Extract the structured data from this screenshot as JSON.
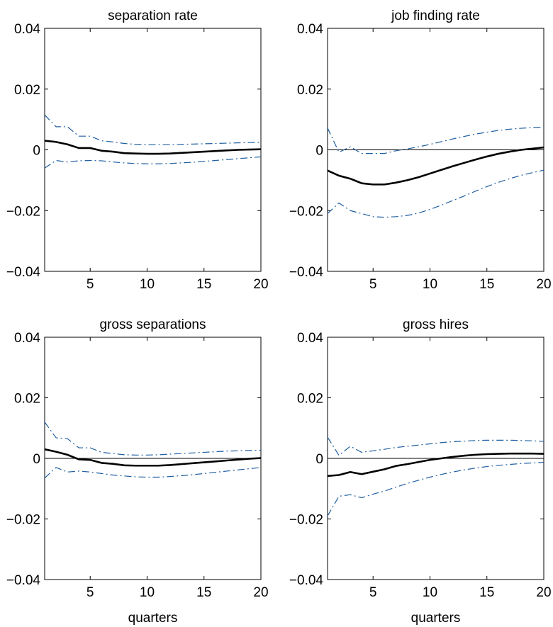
{
  "chart_data": [
    {
      "type": "line",
      "title": "separation rate",
      "xlabel": "",
      "ylabel": "",
      "xlim": [
        1,
        20
      ],
      "ylim": [
        -0.04,
        0.04
      ],
      "xticks": [
        5,
        10,
        15,
        20
      ],
      "xtick_labels": [
        "5",
        "10",
        "15",
        "20"
      ],
      "yticks": [
        -0.04,
        -0.02,
        0,
        0.02,
        0.04
      ],
      "ytick_labels": [
        "−0.04",
        "−0.02",
        "0",
        "0.02",
        "0.04"
      ],
      "x": [
        1,
        2,
        3,
        4,
        5,
        6,
        7,
        8,
        9,
        10,
        11,
        12,
        13,
        14,
        15,
        16,
        17,
        18,
        19,
        20
      ],
      "series": [
        {
          "role": "estimate",
          "color": "#000000",
          "values": [
            0.003,
            0.0026,
            0.0018,
            0.0006,
            0.0006,
            -0.0003,
            -0.0006,
            -0.0011,
            -0.0012,
            -0.0013,
            -0.0013,
            -0.0012,
            -0.001,
            -0.0008,
            -0.0006,
            -0.0004,
            -0.0002,
            0.0,
            0.0001,
            0.0002
          ]
        },
        {
          "role": "upper-band",
          "color": "#1f5fa0",
          "values": [
            0.0115,
            0.0076,
            0.0076,
            0.0045,
            0.0045,
            0.003,
            0.0026,
            0.0021,
            0.0018,
            0.0017,
            0.0017,
            0.0017,
            0.0018,
            0.0019,
            0.002,
            0.0021,
            0.0022,
            0.0023,
            0.0024,
            0.0025
          ]
        },
        {
          "role": "lower-band",
          "color": "#1f5fa0",
          "values": [
            -0.006,
            -0.0035,
            -0.004,
            -0.0036,
            -0.0035,
            -0.0036,
            -0.004,
            -0.0043,
            -0.0045,
            -0.0046,
            -0.0046,
            -0.0045,
            -0.0043,
            -0.0041,
            -0.0038,
            -0.0035,
            -0.0032,
            -0.0029,
            -0.0026,
            -0.0023
          ]
        }
      ],
      "zero_line": false
    },
    {
      "type": "line",
      "title": "job finding rate",
      "xlabel": "",
      "ylabel": "",
      "xlim": [
        1,
        20
      ],
      "ylim": [
        -0.04,
        0.04
      ],
      "xticks": [
        5,
        10,
        15,
        20
      ],
      "xtick_labels": [
        "5",
        "10",
        "15",
        "20"
      ],
      "yticks": [
        -0.04,
        -0.02,
        0,
        0.02,
        0.04
      ],
      "ytick_labels": [
        "−0.04",
        "−0.02",
        "0",
        "0.02",
        "0.04"
      ],
      "x": [
        1,
        2,
        3,
        4,
        5,
        6,
        7,
        8,
        9,
        10,
        11,
        12,
        13,
        14,
        15,
        16,
        17,
        18,
        19,
        20
      ],
      "series": [
        {
          "role": "estimate",
          "color": "#000000",
          "values": [
            -0.0068,
            -0.0085,
            -0.0095,
            -0.011,
            -0.0114,
            -0.0114,
            -0.0108,
            -0.01,
            -0.009,
            -0.0078,
            -0.0066,
            -0.0054,
            -0.0043,
            -0.0032,
            -0.0022,
            -0.0013,
            -0.0006,
            0.0,
            0.0004,
            0.0008
          ]
        },
        {
          "role": "upper-band",
          "color": "#1f5fa0",
          "values": [
            0.0072,
            -0.0008,
            0.001,
            -0.0012,
            -0.0012,
            -0.0012,
            -0.0003,
            0.0003,
            0.001,
            0.0018,
            0.0027,
            0.0036,
            0.0044,
            0.0052,
            0.0058,
            0.0064,
            0.0068,
            0.0071,
            0.0073,
            0.0075
          ]
        },
        {
          "role": "lower-band",
          "color": "#1f5fa0",
          "values": [
            -0.021,
            -0.0175,
            -0.02,
            -0.021,
            -0.022,
            -0.0222,
            -0.022,
            -0.0216,
            -0.0208,
            -0.0196,
            -0.0182,
            -0.0167,
            -0.0152,
            -0.0136,
            -0.0121,
            -0.0107,
            -0.0095,
            -0.0084,
            -0.0075,
            -0.0067
          ]
        }
      ],
      "zero_line": true
    },
    {
      "type": "line",
      "title": "gross separations",
      "xlabel": "quarters",
      "ylabel": "",
      "xlim": [
        1,
        20
      ],
      "ylim": [
        -0.04,
        0.04
      ],
      "xticks": [
        5,
        10,
        15,
        20
      ],
      "xtick_labels": [
        "5",
        "10",
        "15",
        "20"
      ],
      "yticks": [
        -0.04,
        -0.02,
        0,
        0.02,
        0.04
      ],
      "ytick_labels": [
        "−0.04",
        "−0.02",
        "0",
        "0.02",
        "0.04"
      ],
      "x": [
        1,
        2,
        3,
        4,
        5,
        6,
        7,
        8,
        9,
        10,
        11,
        12,
        13,
        14,
        15,
        16,
        17,
        18,
        19,
        20
      ],
      "series": [
        {
          "role": "estimate",
          "color": "#000000",
          "values": [
            0.003,
            0.0022,
            0.0012,
            -0.0003,
            -0.0005,
            -0.0015,
            -0.0018,
            -0.0023,
            -0.0024,
            -0.0024,
            -0.0024,
            -0.0022,
            -0.0019,
            -0.0016,
            -0.0013,
            -0.001,
            -0.0007,
            -0.0004,
            -0.0001,
            0.0001
          ]
        },
        {
          "role": "upper-band",
          "color": "#1f5fa0",
          "values": [
            0.012,
            0.0068,
            0.0065,
            0.0035,
            0.0035,
            0.002,
            0.0016,
            0.0012,
            0.0011,
            0.0011,
            0.0012,
            0.0014,
            0.0016,
            0.0018,
            0.002,
            0.0022,
            0.0024,
            0.0025,
            0.0026,
            0.0027
          ]
        },
        {
          "role": "lower-band",
          "color": "#1f5fa0",
          "values": [
            -0.0065,
            -0.003,
            -0.0045,
            -0.0042,
            -0.0045,
            -0.005,
            -0.0055,
            -0.0058,
            -0.0061,
            -0.0062,
            -0.0062,
            -0.006,
            -0.0057,
            -0.0054,
            -0.005,
            -0.0046,
            -0.0042,
            -0.0038,
            -0.0034,
            -0.003
          ]
        }
      ],
      "zero_line": true
    },
    {
      "type": "line",
      "title": "gross hires",
      "xlabel": "quarters",
      "ylabel": "",
      "xlim": [
        1,
        20
      ],
      "ylim": [
        -0.04,
        0.04
      ],
      "xticks": [
        5,
        10,
        15,
        20
      ],
      "xtick_labels": [
        "5",
        "10",
        "15",
        "20"
      ],
      "yticks": [
        -0.04,
        -0.02,
        0,
        0.02,
        0.04
      ],
      "ytick_labels": [
        "−0.04",
        "−0.02",
        "0",
        "0.02",
        "0.04"
      ],
      "x": [
        1,
        2,
        3,
        4,
        5,
        6,
        7,
        8,
        9,
        10,
        11,
        12,
        13,
        14,
        15,
        16,
        17,
        18,
        19,
        20
      ],
      "series": [
        {
          "role": "estimate",
          "color": "#000000",
          "values": [
            -0.0058,
            -0.0055,
            -0.0045,
            -0.0052,
            -0.0044,
            -0.0036,
            -0.0025,
            -0.0019,
            -0.0012,
            -0.0005,
            0.0,
            0.0005,
            0.0009,
            0.0012,
            0.0014,
            0.0015,
            0.0016,
            0.0016,
            0.0016,
            0.0015
          ]
        },
        {
          "role": "upper-band",
          "color": "#1f5fa0",
          "values": [
            0.007,
            0.001,
            0.004,
            0.002,
            0.0025,
            0.003,
            0.0036,
            0.004,
            0.0044,
            0.0048,
            0.0052,
            0.0055,
            0.0057,
            0.0059,
            0.006,
            0.006,
            0.006,
            0.0059,
            0.0058,
            0.0056
          ]
        },
        {
          "role": "lower-band",
          "color": "#1f5fa0",
          "values": [
            -0.019,
            -0.0125,
            -0.012,
            -0.013,
            -0.0118,
            -0.0108,
            -0.0095,
            -0.0083,
            -0.0072,
            -0.0062,
            -0.0053,
            -0.0045,
            -0.0038,
            -0.0032,
            -0.0027,
            -0.0023,
            -0.002,
            -0.0017,
            -0.0015,
            -0.0013
          ]
        }
      ],
      "zero_line": true
    }
  ]
}
